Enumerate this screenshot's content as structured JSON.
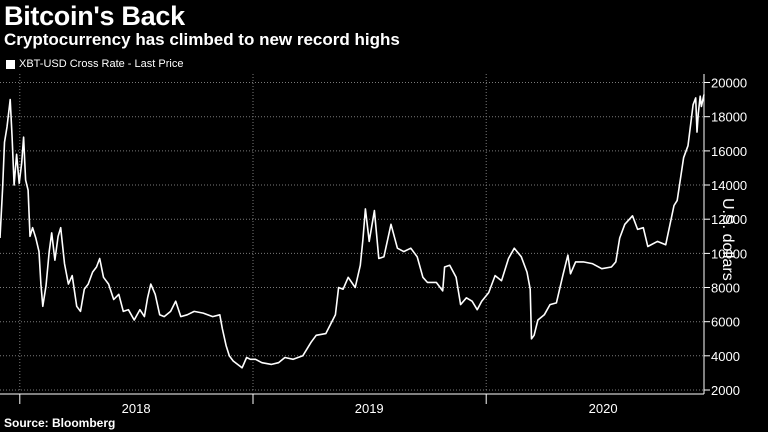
{
  "header": {
    "title": "Bitcoin's Back",
    "subtitle": "Cryptocurrency has climbed to new record highs"
  },
  "footer": {
    "source": "Source: Bloomberg"
  },
  "colors": {
    "background": "#000000",
    "line": "#ffffff",
    "grid": "#7a7a7a"
  },
  "chart_data": {
    "type": "line",
    "title": "Bitcoin's Back",
    "subtitle": "Cryptocurrency has climbed to new record highs",
    "ylabel": "U.S. dollars",
    "xlabel": "",
    "ylim": [
      2000,
      20500
    ],
    "xlim": [
      "2017-12-01",
      "2020-12-07"
    ],
    "yticks": [
      2000,
      4000,
      6000,
      8000,
      10000,
      12000,
      14000,
      16000,
      18000,
      20000
    ],
    "x_tick_labels": [
      "2018",
      "2019",
      "2020"
    ],
    "grid": true,
    "legend_position": "top-left",
    "series": [
      {
        "name": "XBT-USD Cross Rate - Last Price",
        "x": [
          "2017-12-01",
          "2017-12-05",
          "2017-12-08",
          "2017-12-12",
          "2017-12-17",
          "2017-12-20",
          "2017-12-23",
          "2017-12-27",
          "2017-12-31",
          "2018-01-04",
          "2018-01-07",
          "2018-01-10",
          "2018-01-14",
          "2018-01-17",
          "2018-01-21",
          "2018-01-26",
          "2018-01-31",
          "2018-02-03",
          "2018-02-06",
          "2018-02-11",
          "2018-02-16",
          "2018-02-20",
          "2018-02-25",
          "2018-03-02",
          "2018-03-06",
          "2018-03-12",
          "2018-03-18",
          "2018-03-24",
          "2018-03-31",
          "2018-04-06",
          "2018-04-12",
          "2018-04-18",
          "2018-04-25",
          "2018-05-01",
          "2018-05-06",
          "2018-05-12",
          "2018-05-20",
          "2018-05-28",
          "2018-06-05",
          "2018-06-12",
          "2018-06-20",
          "2018-06-29",
          "2018-07-08",
          "2018-07-15",
          "2018-07-20",
          "2018-07-25",
          "2018-08-01",
          "2018-08-08",
          "2018-08-15",
          "2018-08-25",
          "2018-09-02",
          "2018-09-10",
          "2018-09-20",
          "2018-10-01",
          "2018-10-15",
          "2018-10-30",
          "2018-11-10",
          "2018-11-14",
          "2018-11-20",
          "2018-11-25",
          "2018-12-01",
          "2018-12-08",
          "2018-12-15",
          "2018-12-22",
          "2018-12-28",
          "2019-01-05",
          "2019-01-15",
          "2019-01-30",
          "2019-02-10",
          "2019-02-20",
          "2019-03-05",
          "2019-03-20",
          "2019-04-02",
          "2019-04-10",
          "2019-04-25",
          "2019-05-10",
          "2019-05-15",
          "2019-05-22",
          "2019-05-30",
          "2019-06-10",
          "2019-06-18",
          "2019-06-22",
          "2019-06-26",
          "2019-07-02",
          "2019-07-10",
          "2019-07-17",
          "2019-07-25",
          "2019-08-05",
          "2019-08-15",
          "2019-08-25",
          "2019-09-05",
          "2019-09-15",
          "2019-09-24",
          "2019-10-01",
          "2019-10-15",
          "2019-10-25",
          "2019-10-28",
          "2019-11-05",
          "2019-11-15",
          "2019-11-22",
          "2019-12-01",
          "2019-12-10",
          "2019-12-18",
          "2019-12-25",
          "2020-01-05",
          "2020-01-15",
          "2020-01-25",
          "2020-02-05",
          "2020-02-14",
          "2020-02-25",
          "2020-03-05",
          "2020-03-10",
          "2020-03-12",
          "2020-03-16",
          "2020-03-22",
          "2020-04-01",
          "2020-04-10",
          "2020-04-20",
          "2020-04-30",
          "2020-05-08",
          "2020-05-12",
          "2020-05-20",
          "2020-06-01",
          "2020-06-15",
          "2020-06-30",
          "2020-07-15",
          "2020-07-22",
          "2020-07-28",
          "2020-08-05",
          "2020-08-17",
          "2020-08-25",
          "2020-09-03",
          "2020-09-10",
          "2020-09-25",
          "2020-10-08",
          "2020-10-21",
          "2020-10-26",
          "2020-11-05",
          "2020-11-12",
          "2020-11-20",
          "2020-11-24",
          "2020-11-26",
          "2020-11-28",
          "2020-12-01",
          "2020-12-03",
          "2020-12-07"
        ],
        "y": [
          10900,
          13800,
          16500,
          17400,
          19000,
          16800,
          14000,
          15800,
          14100,
          15300,
          16800,
          14300,
          13700,
          11000,
          11500,
          10900,
          10100,
          8200,
          6900,
          8100,
          10100,
          11200,
          9600,
          11000,
          11500,
          9400,
          8200,
          8700,
          6900,
          6600,
          7900,
          8200,
          8900,
          9200,
          9700,
          8600,
          8200,
          7300,
          7600,
          6600,
          6700,
          6100,
          6700,
          6300,
          7400,
          8200,
          7600,
          6400,
          6300,
          6600,
          7200,
          6300,
          6400,
          6600,
          6500,
          6300,
          6400,
          5600,
          4600,
          4000,
          3700,
          3500,
          3300,
          3900,
          3800,
          3800,
          3600,
          3500,
          3600,
          3900,
          3800,
          4000,
          4800,
          5200,
          5300,
          6400,
          8000,
          7900,
          8600,
          8000,
          9300,
          10800,
          12600,
          10700,
          12500,
          9700,
          9800,
          11700,
          10300,
          10100,
          10300,
          9800,
          8600,
          8300,
          8300,
          7800,
          9200,
          9300,
          8600,
          7000,
          7400,
          7200,
          6700,
          7200,
          7700,
          8700,
          8400,
          9700,
          10300,
          9800,
          8900,
          7900,
          5000,
          5200,
          6100,
          6400,
          7000,
          7100,
          8700,
          9900,
          8800,
          9500,
          9500,
          9400,
          9100,
          9200,
          9500,
          10900,
          11700,
          12200,
          11400,
          11500,
          10400,
          10700,
          10500,
          12800,
          13100,
          15600,
          16300,
          18700,
          19100,
          17100,
          18200,
          19200,
          18600,
          19300
        ]
      }
    ]
  }
}
